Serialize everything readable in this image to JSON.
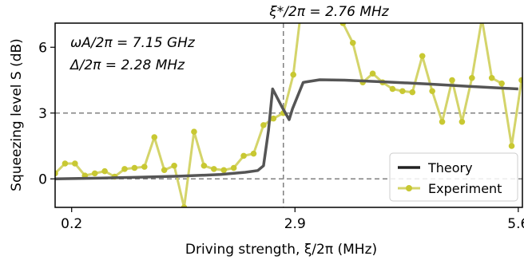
{
  "chart_data": {
    "type": "line",
    "xlabel": "Driving strength, ξ/2π (MHz)",
    "ylabel": "Squeezing level S (dB)",
    "xlim": [
      0.0,
      5.65
    ],
    "ylim": [
      -1.3,
      7.1
    ],
    "xticks": [
      0.2,
      2.9,
      5.6
    ],
    "xtick_labels": [
      "0.2",
      "2.9",
      "5.6"
    ],
    "yticks": [
      0,
      3,
      6
    ],
    "ytick_labels": [
      "0",
      "3",
      "6"
    ],
    "grid": "horizontal dashed at 0 and 3",
    "marker_line": {
      "x": 2.76,
      "label": "ξ*/2π = 2.76 MHz"
    },
    "annotations": [
      "ωA/2π = 7.15 GHz",
      "Δ/2π = 2.28 MHz"
    ],
    "legend": {
      "placement": "bottom-right",
      "entries": [
        "Theory",
        "Experiment"
      ]
    },
    "colors": {
      "theory": "#555555",
      "experiment": "#c8c832",
      "experiment_line": "#d4d46a",
      "guide": "#808080"
    },
    "series": [
      {
        "name": "Theory",
        "x": [
          0.0,
          0.5,
          1.0,
          1.5,
          2.0,
          2.3,
          2.45,
          2.52,
          2.58,
          2.63,
          2.74,
          2.83,
          2.87,
          3.0,
          3.2,
          3.5,
          4.0,
          4.5,
          5.0,
          5.6
        ],
        "y": [
          0.0,
          0.03,
          0.07,
          0.12,
          0.2,
          0.3,
          0.38,
          0.6,
          2.2,
          4.1,
          3.3,
          2.7,
          3.2,
          4.4,
          4.52,
          4.5,
          4.42,
          4.33,
          4.22,
          4.1
        ]
      },
      {
        "name": "Experiment",
        "x": [
          0.0,
          0.12,
          0.24,
          0.36,
          0.48,
          0.6,
          0.72,
          0.84,
          0.96,
          1.08,
          1.2,
          1.32,
          1.44,
          1.56,
          1.68,
          1.8,
          1.92,
          2.04,
          2.16,
          2.28,
          2.4,
          2.52,
          2.64,
          2.76,
          2.88,
          3.0,
          3.12,
          3.24,
          3.36,
          3.48,
          3.6,
          3.72,
          3.84,
          3.96,
          4.08,
          4.2,
          4.32,
          4.44,
          4.56,
          4.68,
          4.8,
          4.92,
          5.04,
          5.16,
          5.28,
          5.4,
          5.52,
          5.64
        ],
        "y": [
          0.25,
          0.7,
          0.7,
          0.15,
          0.25,
          0.35,
          0.1,
          0.45,
          0.5,
          0.55,
          1.9,
          0.4,
          0.6,
          -1.3,
          2.15,
          0.6,
          0.45,
          0.4,
          0.5,
          1.05,
          1.15,
          2.45,
          2.75,
          3.0,
          4.75,
          8.5,
          8.0,
          8.3,
          7.5,
          7.1,
          6.2,
          4.4,
          4.8,
          4.4,
          4.1,
          4.0,
          3.95,
          5.6,
          4.0,
          2.6,
          4.5,
          2.6,
          4.6,
          7.3,
          4.6,
          4.35,
          1.5,
          4.5
        ]
      }
    ]
  }
}
